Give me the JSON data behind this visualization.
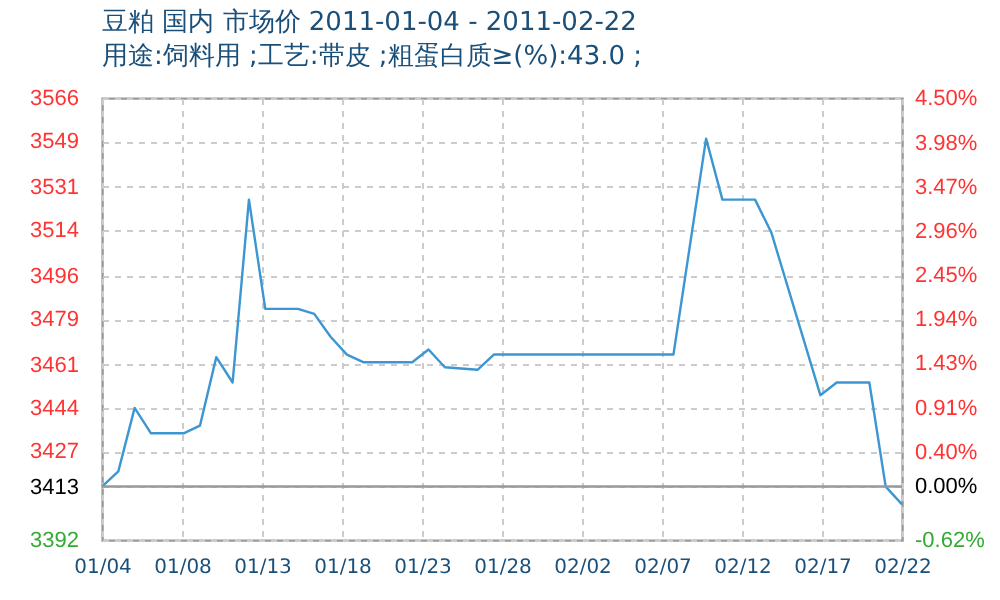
{
  "chart_data": {
    "type": "line",
    "title": "豆粕 国内 市场价 2011-01-04 - 2011-02-22",
    "subtitle": "用途:饲料用 ;工艺:带皮 ;粗蛋白质≥(%):43.0 ;",
    "x": [
      "2011-01-04",
      "2011-01-05",
      "2011-01-06",
      "2011-01-07",
      "2011-01-09",
      "2011-01-10",
      "2011-01-11",
      "2011-01-12",
      "2011-01-13",
      "2011-01-14",
      "2011-01-16",
      "2011-01-17",
      "2011-01-18",
      "2011-01-19",
      "2011-01-20",
      "2011-01-23",
      "2011-01-24",
      "2011-01-25",
      "2011-01-27",
      "2011-01-28",
      "2011-02-08",
      "2011-02-10",
      "2011-02-11",
      "2011-02-13",
      "2011-02-14",
      "2011-02-17",
      "2011-02-18",
      "2011-02-20",
      "2011-02-21",
      "2011-02-22"
    ],
    "series": [
      {
        "color": "#3c96d2",
        "values": [
          3413,
          3419,
          3444,
          3434,
          3434,
          3437,
          3464,
          3454,
          3526,
          3483,
          3483,
          3481,
          3472,
          3465,
          3462,
          3462,
          3467,
          3460,
          3459,
          3465,
          3465,
          3550,
          3526,
          3526,
          3513,
          3449,
          3454,
          3454,
          3413,
          3406
        ]
      }
    ],
    "xlim": [
      "2011-01-04",
      "2011-02-22"
    ],
    "xticks": [
      {
        "value": "2011-01-04",
        "label": "01/04"
      },
      {
        "value": "2011-01-08T21:36",
        "label": "01/08"
      },
      {
        "value": "2011-01-13T19:12",
        "label": "01/13"
      },
      {
        "value": "2011-01-18T16:48",
        "label": "01/18"
      },
      {
        "value": "2011-01-23T14:24",
        "label": "01/23"
      },
      {
        "value": "2011-01-28T12:00",
        "label": "01/28"
      },
      {
        "value": "2011-02-02T09:36",
        "label": "02/02"
      },
      {
        "value": "2011-02-07T07:12",
        "label": "02/07"
      },
      {
        "value": "2011-02-12T04:48",
        "label": "02/12"
      },
      {
        "value": "2011-02-17T02:24",
        "label": "02/17"
      },
      {
        "value": "2011-02-22",
        "label": "02/22"
      }
    ],
    "ylim": [
      3392,
      3566
    ],
    "yticks": [
      3392,
      3413,
      3427,
      3444,
      3461,
      3479,
      3496,
      3514,
      3531,
      3549,
      3566
    ],
    "y2lim": [
      -0.62,
      4.5
    ],
    "y2ticks": [
      {
        "value": -0.62,
        "label": "-0.62%"
      },
      {
        "value": 0,
        "label": "0.00%"
      },
      {
        "value": 0.4,
        "label": "0.40%"
      },
      {
        "value": 0.91,
        "label": "0.91%"
      },
      {
        "value": 1.43,
        "label": "1.43%"
      },
      {
        "value": 1.94,
        "label": "1.94%"
      },
      {
        "value": 2.45,
        "label": "2.45%"
      },
      {
        "value": 2.96,
        "label": "2.96%"
      },
      {
        "value": 3.47,
        "label": "3.47%"
      },
      {
        "value": 3.98,
        "label": "3.98%"
      },
      {
        "value": 4.5,
        "label": "4.50%"
      }
    ],
    "ref_lines": [
      {
        "axis": "y2",
        "value": 0,
        "color": "#999999"
      }
    ],
    "grid": true,
    "marker": "none",
    "line_style": "solid"
  }
}
